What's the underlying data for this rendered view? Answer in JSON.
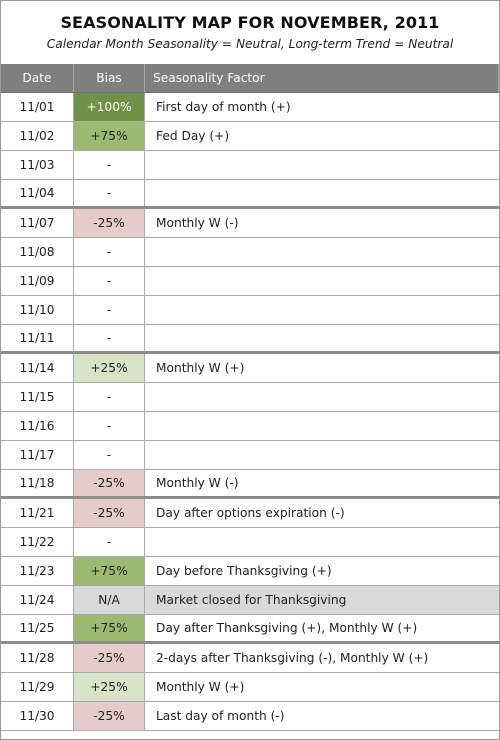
{
  "title": "SEASONALITY MAP FOR NOVEMBER, 2011",
  "subtitle": "Calendar Month Seasonality = Neutral, Long-term Trend = Neutral",
  "columns": {
    "date": "Date",
    "bias": "Bias",
    "factor": "Seasonality Factor"
  },
  "bias_colors": {
    "+100%": "#6f9246",
    "+75%": "#9bbb72",
    "+25%": "#d9e3c8",
    "-25%": "#e6cbcd",
    "N/A": "#d9d9d9"
  },
  "rows": [
    {
      "date": "11/01",
      "bias": "+100%",
      "factor": "First day of month (+)",
      "week_end": false
    },
    {
      "date": "11/02",
      "bias": "+75%",
      "factor": "Fed Day (+)",
      "week_end": false
    },
    {
      "date": "11/03",
      "bias": "-",
      "factor": "",
      "week_end": false
    },
    {
      "date": "11/04",
      "bias": "-",
      "factor": "",
      "week_end": true
    },
    {
      "date": "11/07",
      "bias": "-25%",
      "factor": "Monthly W (-)",
      "week_end": false
    },
    {
      "date": "11/08",
      "bias": "-",
      "factor": "",
      "week_end": false
    },
    {
      "date": "11/09",
      "bias": "-",
      "factor": "",
      "week_end": false
    },
    {
      "date": "11/10",
      "bias": "-",
      "factor": "",
      "week_end": false
    },
    {
      "date": "11/11",
      "bias": "-",
      "factor": "",
      "week_end": true
    },
    {
      "date": "11/14",
      "bias": "+25%",
      "factor": "Monthly W (+)",
      "week_end": false
    },
    {
      "date": "11/15",
      "bias": "-",
      "factor": "",
      "week_end": false
    },
    {
      "date": "11/16",
      "bias": "-",
      "factor": "",
      "week_end": false
    },
    {
      "date": "11/17",
      "bias": "-",
      "factor": "",
      "week_end": false
    },
    {
      "date": "11/18",
      "bias": "-25%",
      "factor": "Monthly W (-)",
      "week_end": true
    },
    {
      "date": "11/21",
      "bias": "-25%",
      "factor": "Day after options expiration (-)",
      "week_end": false
    },
    {
      "date": "11/22",
      "bias": "-",
      "factor": "",
      "week_end": false
    },
    {
      "date": "11/23",
      "bias": "+75%",
      "factor": "Day before Thanksgiving (+)",
      "week_end": false
    },
    {
      "date": "11/24",
      "bias": "N/A",
      "factor": "Market closed for Thanksgiving",
      "week_end": false,
      "closed": true
    },
    {
      "date": "11/25",
      "bias": "+75%",
      "factor": "Day after Thanksgiving (+), Monthly W (+)",
      "week_end": true
    },
    {
      "date": "11/28",
      "bias": "-25%",
      "factor": "2-days after Thanksgiving (-), Monthly W (+)",
      "week_end": false
    },
    {
      "date": "11/29",
      "bias": "+25%",
      "factor": "Monthly W (+)",
      "week_end": false
    },
    {
      "date": "11/30",
      "bias": "-25%",
      "factor": "Last day of month (-)",
      "week_end": false
    }
  ]
}
